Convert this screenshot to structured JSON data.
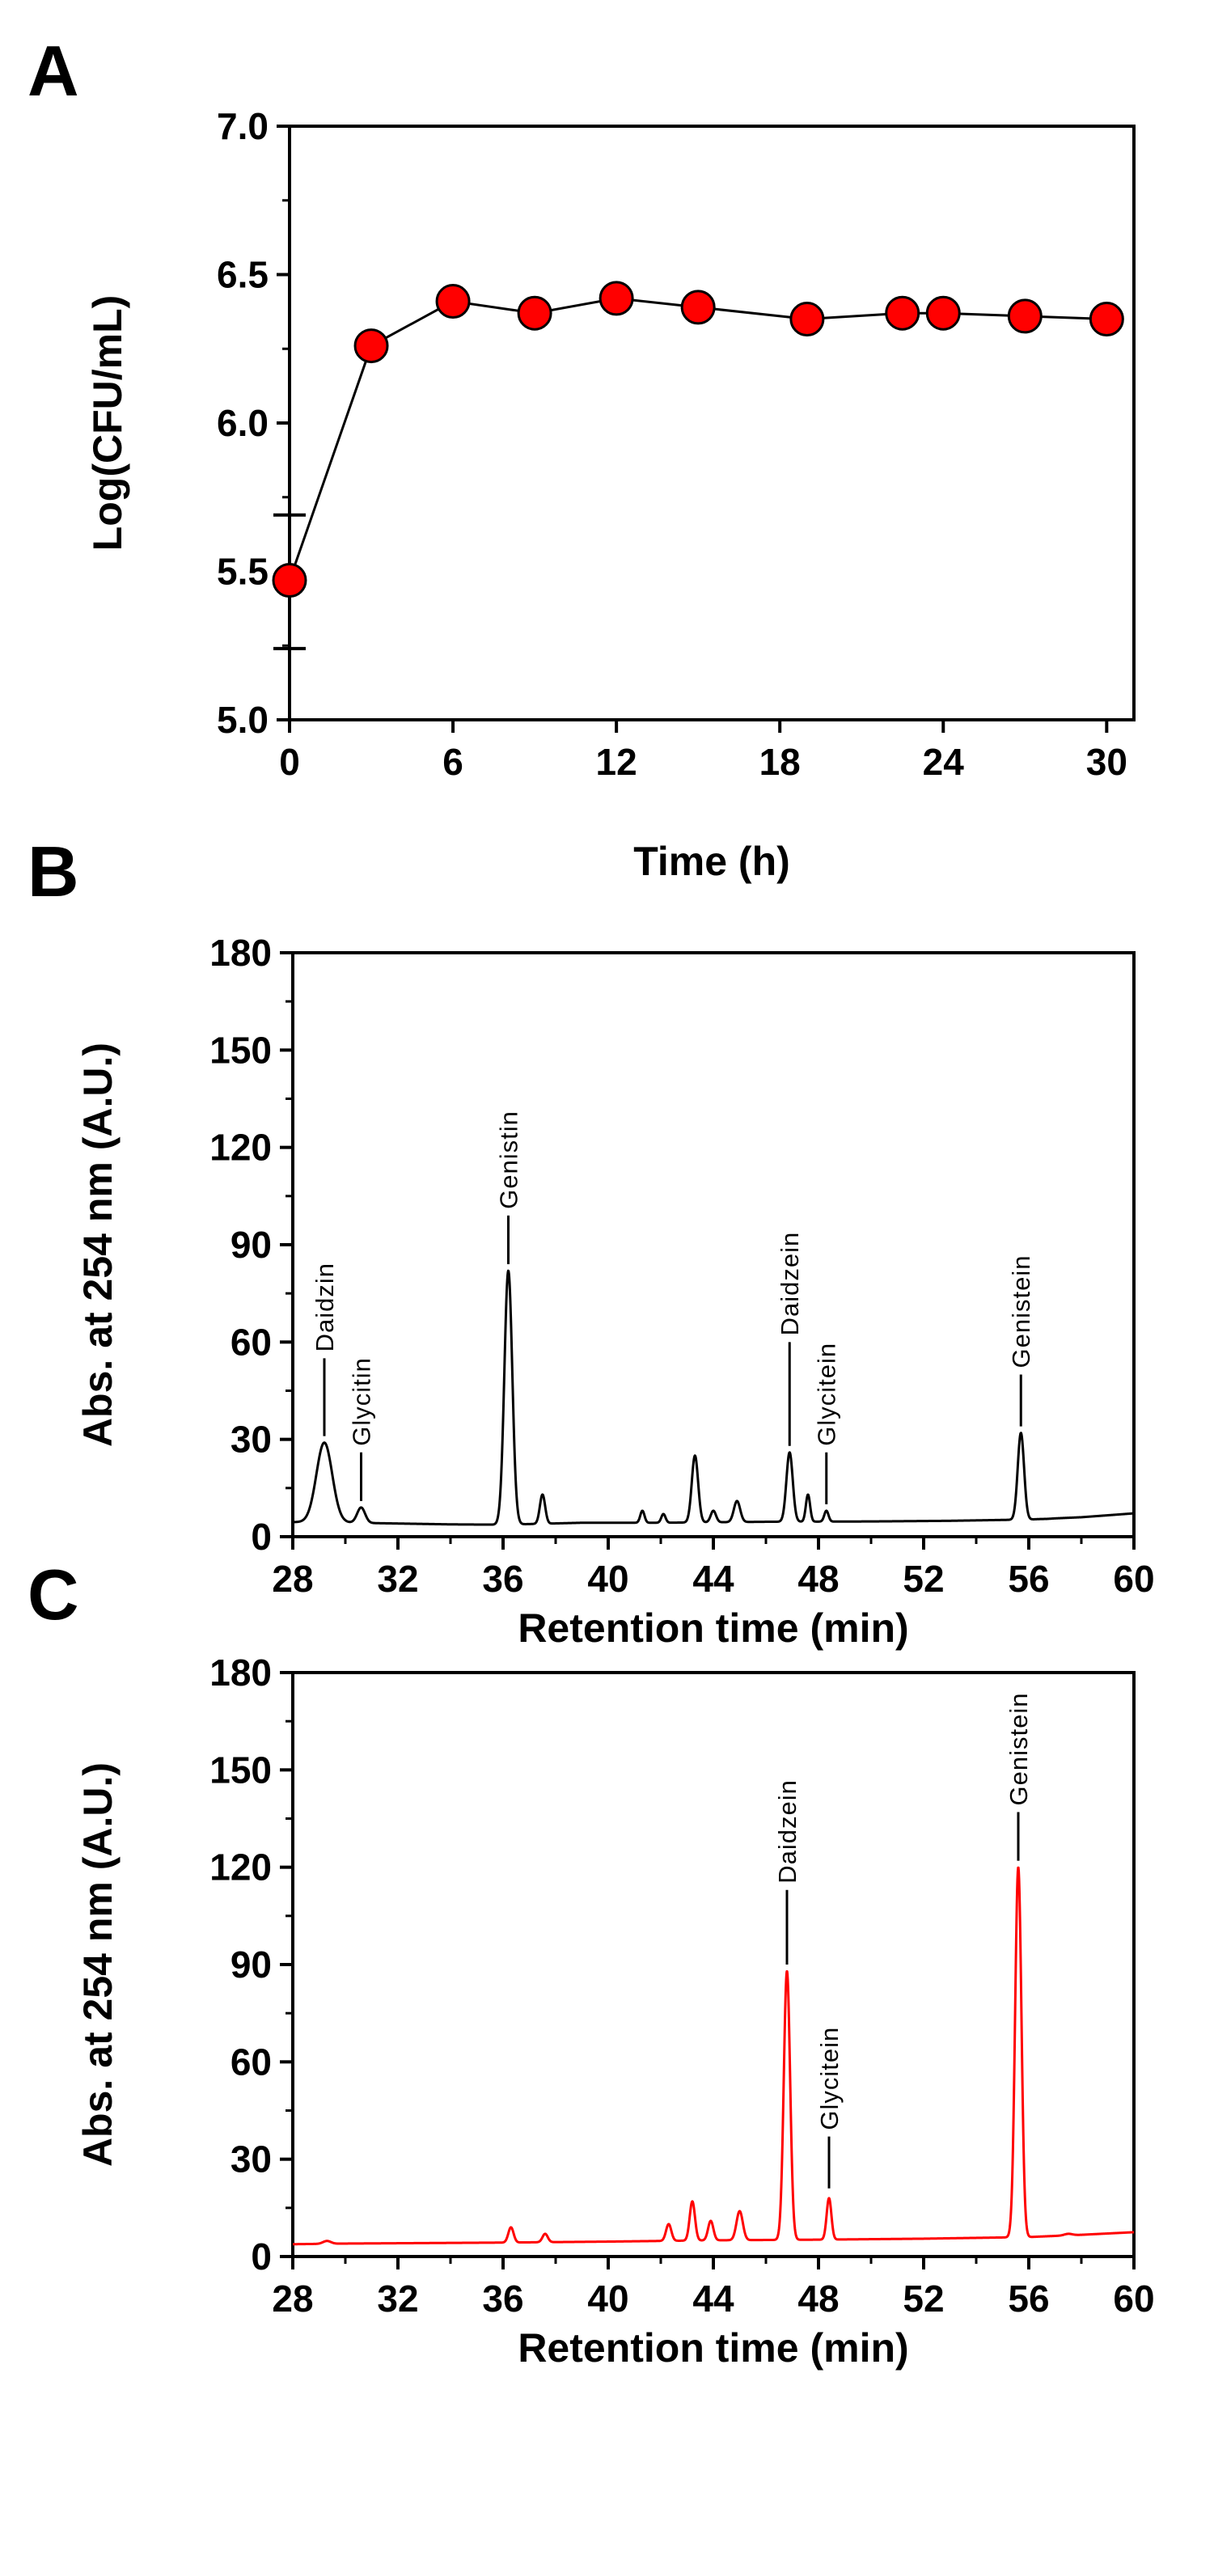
{
  "chart_data": [
    {
      "panel": "A",
      "type": "line",
      "xlabel": "Time (h)",
      "ylabel": "Log(CFU/mL)",
      "xlim": [
        0,
        31
      ],
      "ylim": [
        5.0,
        7.0
      ],
      "xticks": [
        "0",
        "6",
        "12",
        "18",
        "24",
        "30"
      ],
      "yticks": [
        "5.0",
        "5.5",
        "6.0",
        "6.5",
        "7.0"
      ],
      "x": [
        0,
        3,
        6,
        9,
        12,
        15,
        19,
        22.5,
        24,
        27,
        30
      ],
      "y": [
        5.47,
        6.26,
        6.41,
        6.37,
        6.42,
        6.39,
        6.35,
        6.37,
        6.37,
        6.36,
        6.35
      ],
      "error_bars": [
        {
          "x": 0,
          "low": 5.24,
          "high": 5.69
        }
      ],
      "marker_color": "#ff0000",
      "line_color": "#000000"
    },
    {
      "panel": "B",
      "type": "line",
      "xlabel": "Retention time (min)",
      "ylabel": "Abs. at 254 nm (A.U.)",
      "xlim": [
        28,
        60
      ],
      "ylim": [
        0,
        180
      ],
      "xticks": [
        "28",
        "32",
        "36",
        "40",
        "44",
        "48",
        "52",
        "56",
        "60"
      ],
      "yticks": [
        "0",
        "30",
        "60",
        "90",
        "120",
        "150",
        "180"
      ],
      "line_color": "#000000",
      "baseline": [
        [
          28,
          4.5
        ],
        [
          29.3,
          4.5
        ],
        [
          31,
          4.2
        ],
        [
          34,
          3.8
        ],
        [
          36,
          3.7
        ],
        [
          39,
          4.3
        ],
        [
          42,
          4.3
        ],
        [
          46,
          4.6
        ],
        [
          50,
          4.7
        ],
        [
          53,
          4.9
        ],
        [
          56,
          5.3
        ],
        [
          58,
          6
        ],
        [
          60,
          7.2
        ]
      ],
      "peaks": [
        {
          "x": 29.2,
          "height": 29,
          "width": 0.3
        },
        {
          "x": 30.6,
          "height": 9,
          "width": 0.15
        },
        {
          "x": 36.2,
          "height": 82,
          "width": 0.15
        },
        {
          "x": 37.5,
          "height": 13,
          "width": 0.1
        },
        {
          "x": 41.3,
          "height": 8,
          "width": 0.08
        },
        {
          "x": 42.1,
          "height": 7,
          "width": 0.08
        },
        {
          "x": 43.3,
          "height": 25,
          "width": 0.12
        },
        {
          "x": 44.0,
          "height": 8,
          "width": 0.1
        },
        {
          "x": 44.9,
          "height": 11,
          "width": 0.12
        },
        {
          "x": 46.9,
          "height": 26,
          "width": 0.12
        },
        {
          "x": 47.6,
          "height": 13,
          "width": 0.08
        },
        {
          "x": 48.3,
          "height": 8,
          "width": 0.08
        },
        {
          "x": 55.7,
          "height": 32,
          "width": 0.12
        },
        {
          "x": 56.7,
          "height": 5.5,
          "width": 0.15
        }
      ],
      "annotations": [
        {
          "label": "Daidzin",
          "x": 29.2,
          "line_y0": 31,
          "line_y1": 55
        },
        {
          "label": "Glycitin",
          "x": 30.6,
          "line_y0": 11,
          "line_y1": 26
        },
        {
          "label": "Genistin",
          "x": 36.2,
          "line_y0": 84,
          "line_y1": 99
        },
        {
          "label": "Daidzein",
          "x": 46.9,
          "line_y0": 28,
          "line_y1": 60
        },
        {
          "label": "Glycitein",
          "x": 48.3,
          "line_y0": 10,
          "line_y1": 26
        },
        {
          "label": "Genistein",
          "x": 55.7,
          "line_y0": 34,
          "line_y1": 50
        }
      ]
    },
    {
      "panel": "C",
      "type": "line",
      "xlabel": "Retention time (min)",
      "ylabel": "Abs. at 254 nm (A.U.)",
      "xlim": [
        28,
        60
      ],
      "ylim": [
        0,
        180
      ],
      "xticks": [
        "28",
        "32",
        "36",
        "40",
        "44",
        "48",
        "52",
        "56",
        "60"
      ],
      "yticks": [
        "0",
        "30",
        "60",
        "90",
        "120",
        "150",
        "180"
      ],
      "line_color": "#ff0000",
      "baseline": [
        [
          28,
          3.8
        ],
        [
          30,
          4.0
        ],
        [
          32,
          4.1
        ],
        [
          36,
          4.3
        ],
        [
          40,
          4.6
        ],
        [
          44,
          5.0
        ],
        [
          48,
          5.2
        ],
        [
          52,
          5.5
        ],
        [
          56,
          6.0
        ],
        [
          58,
          6.7
        ],
        [
          60,
          7.5
        ]
      ],
      "peaks": [
        {
          "x": 29.3,
          "height": 4.8,
          "width": 0.15
        },
        {
          "x": 36.3,
          "height": 9,
          "width": 0.1
        },
        {
          "x": 37.6,
          "height": 7,
          "width": 0.1
        },
        {
          "x": 42.3,
          "height": 10,
          "width": 0.1
        },
        {
          "x": 43.2,
          "height": 17,
          "width": 0.1
        },
        {
          "x": 43.9,
          "height": 11,
          "width": 0.1
        },
        {
          "x": 45.0,
          "height": 14,
          "width": 0.12
        },
        {
          "x": 46.8,
          "height": 88,
          "width": 0.12
        },
        {
          "x": 48.4,
          "height": 18,
          "width": 0.09
        },
        {
          "x": 55.6,
          "height": 120,
          "width": 0.12
        },
        {
          "x": 57.5,
          "height": 7,
          "width": 0.15
        }
      ],
      "annotations": [
        {
          "label": "Daidzein",
          "x": 46.8,
          "line_y0": 90,
          "line_y1": 113
        },
        {
          "label": "Glycitein",
          "x": 48.4,
          "line_y0": 21,
          "line_y1": 37
        },
        {
          "label": "Genistein",
          "x": 55.6,
          "line_y0": 122,
          "line_y1": 137
        }
      ]
    }
  ]
}
